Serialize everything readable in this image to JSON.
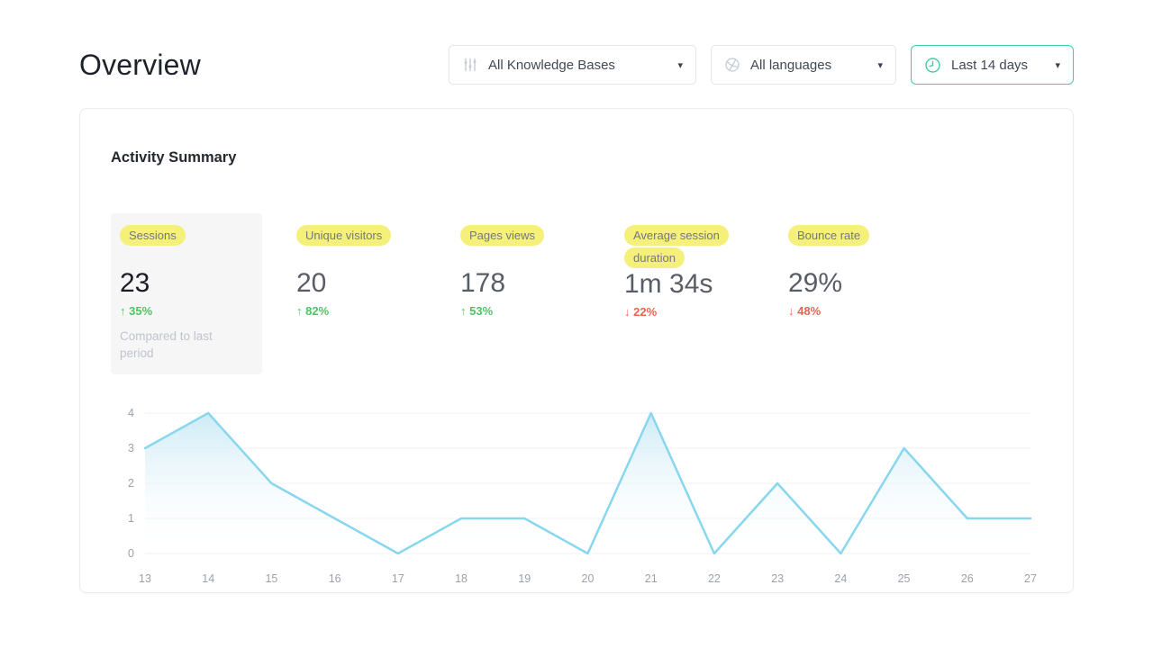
{
  "page": {
    "title": "Overview"
  },
  "filters": {
    "knowledge_base": {
      "label": "All Knowledge Bases",
      "icon": "sliders-icon"
    },
    "language": {
      "label": "All languages",
      "icon": "globe-icon"
    },
    "date_range": {
      "label": "Last 14 days",
      "icon": "clock-icon"
    }
  },
  "card": {
    "title": "Activity Summary",
    "metrics": [
      {
        "label": "Sessions",
        "value": "23",
        "trend": "35%",
        "direction": "up",
        "note": "Compared to last period",
        "selected": true
      },
      {
        "label": "Unique visitors",
        "value": "20",
        "trend": "82%",
        "direction": "up",
        "selected": false
      },
      {
        "label": "Pages views",
        "value": "178",
        "trend": "53%",
        "direction": "up",
        "selected": false
      },
      {
        "label": "Average session duration",
        "value": "1m 34s",
        "trend": "22%",
        "direction": "down",
        "selected": false
      },
      {
        "label": "Bounce rate",
        "value": "29%",
        "trend": "48%",
        "direction": "down",
        "selected": false
      }
    ]
  },
  "chart_data": {
    "type": "area",
    "title": "",
    "x": [
      13,
      14,
      15,
      16,
      17,
      18,
      19,
      20,
      21,
      22,
      23,
      24,
      25,
      26,
      27
    ],
    "series": [
      {
        "name": "Sessions",
        "values": [
          3,
          4,
          2,
          1,
          0,
          1,
          1,
          0,
          4,
          0,
          2,
          0,
          3,
          1,
          1
        ]
      }
    ],
    "xlabel": "",
    "ylabel": "",
    "ylim": [
      0,
      4
    ],
    "yticks": [
      0,
      1,
      2,
      3,
      4
    ],
    "grid": true,
    "legend": false,
    "line_color": "#89d7ee",
    "fill_top_color": "#bce4f2",
    "grid_color": "#f1f2f5"
  },
  "colors": {
    "accent_green": "#3dcf9d",
    "trend_up": "#4fc465",
    "trend_down": "#f0614d",
    "highlight_yellow": "#f4f07a",
    "icon_grey": "#c6cbd2"
  },
  "glyphs": {
    "caret": "▾",
    "arrow_up": "↑",
    "arrow_down": "↓"
  }
}
